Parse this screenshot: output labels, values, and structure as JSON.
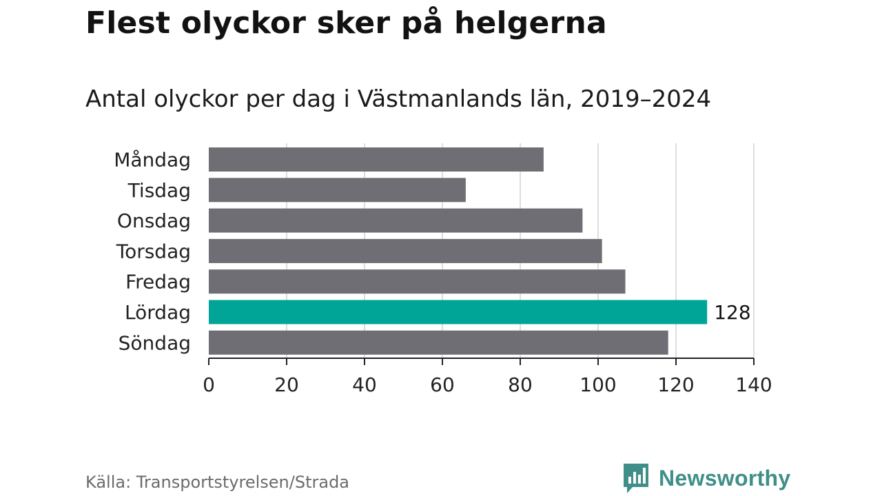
{
  "chart_data": {
    "type": "bar",
    "orientation": "horizontal",
    "title": "Flest olyckor sker på helgerna",
    "subtitle": "Antal olyckor per dag i Västmanlands län, 2019–2024",
    "categories": [
      "Måndag",
      "Tisdag",
      "Onsdag",
      "Torsdag",
      "Fredag",
      "Lördag",
      "Söndag"
    ],
    "values": [
      86,
      66,
      96,
      101,
      107,
      128,
      118
    ],
    "highlight_index": 5,
    "data_labels": [
      {
        "category": "Lördag",
        "label": "128"
      }
    ],
    "xlim": [
      0,
      140
    ],
    "xticks": [
      0,
      20,
      40,
      60,
      80,
      100,
      120,
      140
    ],
    "grid": true,
    "xlabel": "",
    "ylabel": "",
    "colors": {
      "bar": "#6f6e74",
      "highlight": "#00a597",
      "grid": "#dddddd",
      "axis": "#222222"
    }
  },
  "footer": {
    "source": "Källa: Transportstyrelsen/Strada",
    "brand": "Newsworthy",
    "brand_icon": "newsworthy-bar-chart-icon",
    "brand_color": "#3f8f88"
  }
}
